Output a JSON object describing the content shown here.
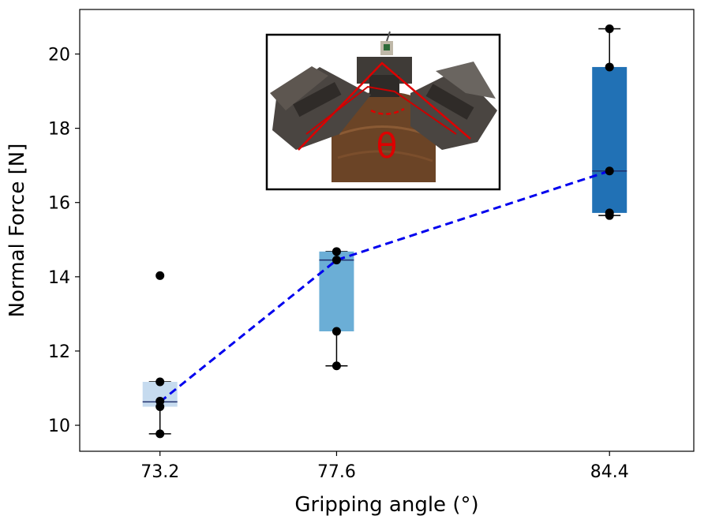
{
  "chart_data": {
    "type": "box",
    "xlabel": "Gripping angle (°)",
    "ylabel": "Normal Force [N]",
    "x_ticks": [
      "73.2",
      "77.6",
      "84.4"
    ],
    "x_range": [
      71.2,
      86.5
    ],
    "ylim": [
      9.3,
      21.2
    ],
    "y_ticks": [
      10,
      12,
      14,
      16,
      18,
      20
    ],
    "grid": false,
    "legend": "none",
    "groups": [
      {
        "x": 73.2,
        "label": "73.2",
        "box_color": "#c6dbef",
        "q1": 10.5,
        "median": 10.63,
        "q3": 11.17,
        "whisker_low": 9.77,
        "whisker_high": 11.17,
        "points": [
          14.03,
          11.17,
          10.65,
          10.5,
          9.77
        ]
      },
      {
        "x": 77.6,
        "label": "77.6",
        "box_color": "#6baed6",
        "q1": 12.53,
        "median": 14.45,
        "q3": 14.68,
        "whisker_low": 11.6,
        "whisker_high": 14.68,
        "points": [
          14.68,
          14.45,
          12.53,
          11.6
        ]
      },
      {
        "x": 84.4,
        "label": "84.4",
        "box_color": "#2171b5",
        "q1": 15.72,
        "median": 16.85,
        "q3": 19.65,
        "whisker_low": 15.65,
        "whisker_high": 20.68,
        "points": [
          20.68,
          19.65,
          16.85,
          15.72,
          15.65
        ]
      }
    ],
    "median_line": {
      "style": "dashed",
      "color": "#0000ee",
      "points": [
        [
          73.2,
          10.63
        ],
        [
          77.6,
          14.45
        ],
        [
          84.4,
          16.85
        ]
      ]
    },
    "inset": {
      "description": "photo",
      "label": "θ",
      "label_color": "#dd0000"
    }
  }
}
